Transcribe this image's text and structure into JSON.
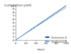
{
  "chart_data": {
    "type": "line",
    "title": "Cumulative yield",
    "x_label": "Years",
    "x": [
      0,
      20,
      40,
      60,
      80,
      100
    ],
    "series": [
      {
        "name": "Scenario A",
        "color": "#1f4e9c",
        "values": [
          0,
          2,
          4,
          6,
          8,
          10
        ]
      },
      {
        "name": "Scenario B",
        "color": "#6fb3e0",
        "values": [
          0,
          1.9,
          3.8,
          5.7,
          7.6,
          9.5
        ]
      }
    ],
    "xlim": [
      0,
      100
    ],
    "xticks": [
      0,
      20,
      40,
      60,
      80,
      100
    ],
    "ylim": [
      0,
      10
    ],
    "yticks": [
      0,
      1,
      2,
      3,
      4,
      5,
      6,
      7,
      8,
      9,
      10
    ],
    "legend": "lower right",
    "grid": false
  }
}
